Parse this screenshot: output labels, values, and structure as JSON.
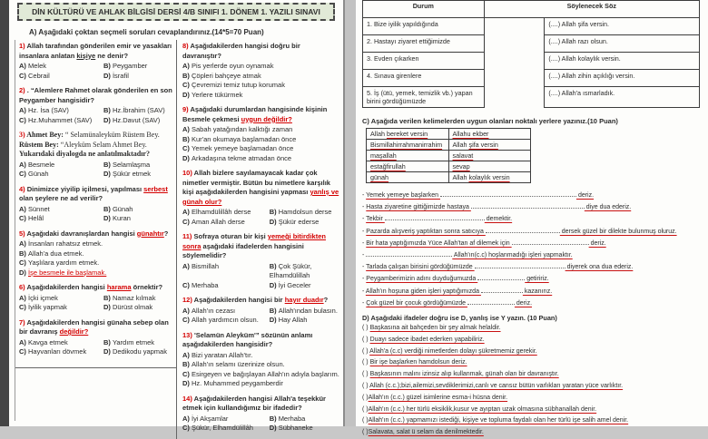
{
  "colors": {
    "accent_red": "#d40000",
    "header_bg": "#e1e9d7",
    "text": "#2b2b2b"
  },
  "page_left": {
    "title": "DİN KÜLTÜRÜ VE AHLAK BİLGİSİ DERSİ 4/B SINIFI 1. DÖNEM 1. YAZILI SINAVI",
    "section_a": "A)  Aşağıdaki çoktan seçmeli soruları cevaplandırınız.(14*5=70 Puan)",
    "col1": [
      {
        "num": "1)",
        "seg": [
          {
            "t": "Allah tarafından gönderilen emir ve yasakları insanlara anlatan "
          },
          {
            "t": "kişiye",
            "s": "u"
          },
          {
            "t": " ne denir?"
          }
        ],
        "cols": 2,
        "opts": [
          {
            "k": "A)",
            "v": "Melek"
          },
          {
            "k": "B)",
            "v": "Peygamber"
          },
          {
            "k": "C)",
            "v": "Cebrail"
          },
          {
            "k": "D)",
            "v": "İsrafil"
          }
        ]
      },
      {
        "num": "2)",
        "seg": [
          {
            "t": ". “Alemlere Rahmet olarak gönderilen en son Peygamber hangisidir?"
          }
        ],
        "cols": 2,
        "opts": [
          {
            "k": "A)",
            "v": "Hz. İsa  (SAV)"
          },
          {
            "k": "B)",
            "v": "Hz.İbrahim (SAV)"
          },
          {
            "k": "C)",
            "v": "Hz.Muhammet  (SAV)"
          },
          {
            "k": "D)",
            "v": "Hz.Davut (SAV)"
          }
        ]
      },
      {
        "num": "3)",
        "serif": true,
        "seg": [
          {
            "t": "Ahmet Bey:"
          },
          {
            "t": " “ Selamünaleyküm Rüstem Bey.",
            "s": "n"
          },
          {
            "br": true
          },
          {
            "t": "Rüstem Bey:"
          },
          {
            "t": " “Aleyküm Selam Ahmet Bey.",
            "s": "n"
          },
          {
            "br": true
          },
          {
            "t": "Yukarıdaki diyalogda ne anlatılmaktadır?"
          }
        ],
        "cols": 2,
        "opts": [
          {
            "k": "A)",
            "v": "Besmele"
          },
          {
            "k": "B)",
            "v": "Selamlaşma"
          },
          {
            "k": "C)",
            "v": "Günah"
          },
          {
            "k": "D)",
            "v": "Şükür etmek"
          }
        ]
      },
      {
        "num": "4)",
        "seg": [
          {
            "t": "Dinimizce yiyilip içilmesi, yapılması "
          },
          {
            "t": "serbest",
            "s": "ru"
          },
          {
            "t": " olan şeylere ne ad verilir?"
          }
        ],
        "cols": 2,
        "opts": [
          {
            "k": "A)",
            "v": "Sünnet"
          },
          {
            "k": "B)",
            "v": "Günah"
          },
          {
            "k": "C)",
            "v": "Helâl"
          },
          {
            "k": "D)",
            "v": "Kuran"
          }
        ]
      },
      {
        "num": "5)",
        "seg": [
          {
            "t": "Aşağıdaki davranışlardan hangisi "
          },
          {
            "t": "günahtır",
            "s": "ru"
          },
          {
            "t": "?"
          }
        ],
        "cols": 1,
        "opts": [
          {
            "k": "A)",
            "v": "İnsanları rahatsız etmek."
          },
          {
            "k": "B)",
            "v": "Allah'a dua etmek."
          },
          {
            "k": "C)",
            "v": "Yaşlılara yardım etmek."
          },
          {
            "k": "D)",
            "v": "İşe besmele ile başlamak.",
            "c": "ru"
          }
        ]
      },
      {
        "num": "6)",
        "seg": [
          {
            "t": "Aşağıdakilerden hangisi "
          },
          {
            "t": "harama",
            "s": "ru"
          },
          {
            "t": " örnektir?"
          }
        ],
        "cols": 2,
        "opts": [
          {
            "k": "A)",
            "v": "İçki içmek"
          },
          {
            "k": "B)",
            "v": "Namaz kılmak"
          },
          {
            "k": "C)",
            "v": "İyilik yapmak"
          },
          {
            "k": "D)",
            "v": "Dürüst olmak"
          }
        ]
      },
      {
        "num": "7)",
        "seg": [
          {
            "t": "Aşağıdakilerden hangisi günaha sebep olan bir davranış "
          },
          {
            "t": "değildir?",
            "s": "ru"
          }
        ],
        "cols": 2,
        "opts": [
          {
            "k": "A)",
            "v": "Kavga etmek"
          },
          {
            "k": "B)",
            "v": "Yardım etmek"
          },
          {
            "k": "C)",
            "v": "Hayvanları dövmek"
          },
          {
            "k": "D)",
            "v": "Dedikodu yapmak"
          }
        ]
      }
    ],
    "col2": [
      {
        "num": "8)",
        "seg": [
          {
            "t": "Aşağıdakilerden hangisi doğru bir davranıştır?"
          }
        ],
        "cols": 1,
        "opts": [
          {
            "k": "A)",
            "v": "Pis yerlerde oyun oynamak"
          },
          {
            "k": "B)",
            "v": "Çöpleri bahçeye atmak"
          },
          {
            "k": "C)",
            "v": "Çevremizi temiz tutup korumak"
          },
          {
            "k": "D)",
            "v": "Yerlere tükürmek"
          }
        ]
      },
      {
        "num": "9)",
        "seg": [
          {
            "t": "Aşağıdaki durumlardan hangisinde kişinin Besmele çekmesi "
          },
          {
            "t": "uygun değildir?",
            "s": "ru"
          }
        ],
        "cols": 1,
        "opts": [
          {
            "k": "A)",
            "v": "Sabah yatağından kalktığı zaman"
          },
          {
            "k": "B)",
            "v": "Kur'an okumaya başlamadan önce"
          },
          {
            "k": "C)",
            "v": "Yemek yemeye başlamadan önce"
          },
          {
            "k": "D)",
            "v": "Arkadaşına tekme atmadan önce"
          }
        ]
      },
      {
        "num": "10)",
        "seg": [
          {
            "t": "Allah bizlere sayılamayacak kadar çok nimetler vermiştir. Bütün bu nimetlere karşılık kişi aşağıdakilerden hangisini yapması "
          },
          {
            "t": "yanlış ve günah olur?",
            "s": "ru"
          }
        ],
        "cols": 2,
        "opts": [
          {
            "k": "A)",
            "v": "Elhamdülillâh derse"
          },
          {
            "k": "B)",
            "v": "Hamdolsun derse"
          },
          {
            "k": "C)",
            "v": "Aman Allah derse"
          },
          {
            "k": "D)",
            "v": "Şükür ederse"
          }
        ]
      },
      {
        "num": "11)",
        "seg": [
          {
            "t": "Sofraya oturan bir kişi "
          },
          {
            "t": "yemeği bitirdikten sonra",
            "s": "ru"
          },
          {
            "t": " aşağıdaki ifadelerden hangisini söylemelidir?"
          }
        ],
        "cols": 2,
        "opts": [
          {
            "k": "A)",
            "v": "Bismillah"
          },
          {
            "k": "B)",
            "v": "Çok Şükür, Elhamdülillah"
          },
          {
            "k": "C)",
            "v": "Merhaba"
          },
          {
            "k": "D)",
            "v": "İyi Geceler"
          }
        ]
      },
      {
        "num": "12)",
        "seg": [
          {
            "t": "Aşağıdakilerden hangisi bir "
          },
          {
            "t": "hayır duadır",
            "s": "ru"
          },
          {
            "t": "?"
          }
        ],
        "cols": 2,
        "opts": [
          {
            "k": "A)",
            "v": "Allah'ın cezası"
          },
          {
            "k": "B)",
            "v": "Allah'ından bulasın."
          },
          {
            "k": "C)",
            "v": "Allah yardımcın olsun."
          },
          {
            "k": "D)",
            "v": "Hay Allah"
          }
        ]
      },
      {
        "num": "13)",
        "seg": [
          {
            "t": "'Selamün Aleyküm'” sözünün anlamı aşağıdakilerden hangisidir?"
          }
        ],
        "cols": 1,
        "opts": [
          {
            "k": "A)",
            "v": "Bizi yaratan Allah'tır."
          },
          {
            "k": "B)",
            "v": "Allah'ın selamı üzerinize olsun."
          },
          {
            "k": "C)",
            "v": "Esirgeyen ve bağışlayan Allah'ın adıyla başlarım."
          },
          {
            "k": "D)",
            "v": "Hz. Muhammed peygamberdir"
          }
        ]
      },
      {
        "num": "14)",
        "seg": [
          {
            "t": "Aşağıdakilerden hangisi Allah'a teşekkür etmek için kullandığımız bir ifadedir?"
          }
        ],
        "cols": 2,
        "opts": [
          {
            "k": "A)",
            "v": "İyi Akşamlar"
          },
          {
            "k": "B)",
            "v": "Merhaba"
          },
          {
            "k": "C)",
            "v": "Şükür, Elhamdülillâh"
          },
          {
            "k": "D)",
            "v": "Sübhaneke"
          }
        ]
      }
    ]
  },
  "page_right": {
    "match_table": {
      "headers": [
        "Durum",
        "Söylenecek Söz"
      ],
      "rows": [
        {
          "durum": "1. Bize iyilik yapıldığında",
          "soz": "(....) Allah şifa versin."
        },
        {
          "durum": "2. Hastayı ziyaret ettiğimizde",
          "soz": "(....) Allah razı olsun."
        },
        {
          "durum": "3. Evden çıkarken",
          "soz": "(....) Allah kolaylık versin."
        },
        {
          "durum": "4. Sınava girenlere",
          "soz": "(....) Allah zihin açıklığı versin."
        },
        {
          "durum": "5. İş (ütü, yemek, temizlik vb.) yapan birini gördüğümüzde",
          "soz": "(....) Allah'a ısmarladık."
        }
      ]
    },
    "section_c": {
      "title": "C) Aşağıda verilen kelimelerden uygun olanları noktalı yerlere yazınız.(10 Puan)",
      "word_bank": [
        [
          {
            "t": "Allah ",
            "u": "bereket versin"
          },
          {
            "t": "",
            "u": "Allahu ekber"
          }
        ],
        [
          {
            "t": "",
            "u": "Bismillahirrahmanirrahim"
          },
          {
            "t": "Allah ",
            "u": "şifa versin"
          }
        ],
        [
          {
            "t": "",
            "u": "maşallah"
          },
          {
            "t": "",
            "u": "salavat"
          }
        ],
        [
          {
            "t": "",
            "u": "estağfirullah"
          },
          {
            "t": "",
            "u": "sevap"
          }
        ],
        [
          {
            "t": "",
            "u": "günah"
          },
          {
            "t": "Allah ",
            "u": "kolaylık versin"
          }
        ]
      ],
      "sentences": [
        {
          "pre": "- ",
          "m": "Yemek yemeye başlarken ",
          "dots": 150,
          "suf": " deriz."
        },
        {
          "pre": "- ",
          "m": "Hasta ziyaretine gittiğimizde hastaya ",
          "dots": 125,
          "suf": " diye dua ederiz."
        },
        {
          "pre": "- ",
          "m": "Tekbir ",
          "dots": 110,
          "suf": " demektir."
        },
        {
          "pre": "- ",
          "m": "Pazarda alışveriş yaptıktan sonra satıcıya ",
          "dots": 82,
          "suf": " dersek güzel bir dilekte bulunmuş oluruz."
        },
        {
          "pre": "- ",
          "m": "Bir hata yaptığımızda Yüce Allah'tan af dilemek için ",
          "dots": 85,
          "suf": " deriz."
        },
        {
          "pre": "- ",
          "m": "",
          "dots": 95,
          "suf": " Allah'ın(c.c) hoşlanmadığı işleri yapmaktır."
        },
        {
          "pre": "- ",
          "m": "Tarlada çalışan birisini gördüğümüzde ",
          "dots": 100,
          "suf": " diyerek ona dua ederiz."
        },
        {
          "pre": "- ",
          "m": "Peygamberimizin adını duyduğumuzda ",
          "dots": 52,
          "suf": " getiririz."
        },
        {
          "pre": "- ",
          "m": "Allah'ın hoşuna giden işleri yaptığımızda ",
          "dots": 46,
          "suf": " kazanırız."
        },
        {
          "pre": "- ",
          "m": "Çok güzel bir çocuk gördüğümüzde ",
          "dots": 52,
          "suf": " deriz."
        }
      ]
    },
    "section_d": {
      "title": "D) Aşağıdaki ifadeler doğru ise D, yanlış ise Y yazın. (10 Puan)",
      "items": [
        {
          "paren": "(   ) ",
          "text": "Başkasına ait bahçeden bir şey almak helaldir."
        },
        {
          "paren": "(   ) ",
          "text": "Duayı sadece ibadet ederken yapabiliriz."
        },
        {
          "paren": "(   ) ",
          "text": "Allah'a (c.c) verdiği nimetlerden dolayı şükretmemiz gerekir."
        },
        {
          "paren": "(   ) ",
          "text": "Bir işe başlarken hamdolsun deriz."
        },
        {
          "paren": "(   ) ",
          "text": "Başkasının malını izinsiz alıp kullanmak, günah olan bir davranıştır."
        },
        {
          "paren": "(   ) ",
          "text": "Allah (c.c.);bizi,ailemizi,sevdiklerimizi,canlı ve cansız bütün varlıkları yaratan yüce varlıktır."
        },
        {
          "paren": "(   )",
          "text": "Allah'ın (c.c.) güzel isimlerine esma-i hüsna denir."
        },
        {
          "paren": "(   )",
          "text": "Allah'ın (c.c.) her türlü eksiklik,kusur ve ayıptan uzak olmasına sübhanallah denir."
        },
        {
          "paren": "(   )",
          "text": "Allah'ın (c.c.) yapmamızı istediği, kişiye ve topluma faydalı olan her türlü işe salih amel denir."
        },
        {
          "paren": "(   )",
          "text": "Salavata, salat ü selam da denilmektedir."
        }
      ]
    }
  }
}
